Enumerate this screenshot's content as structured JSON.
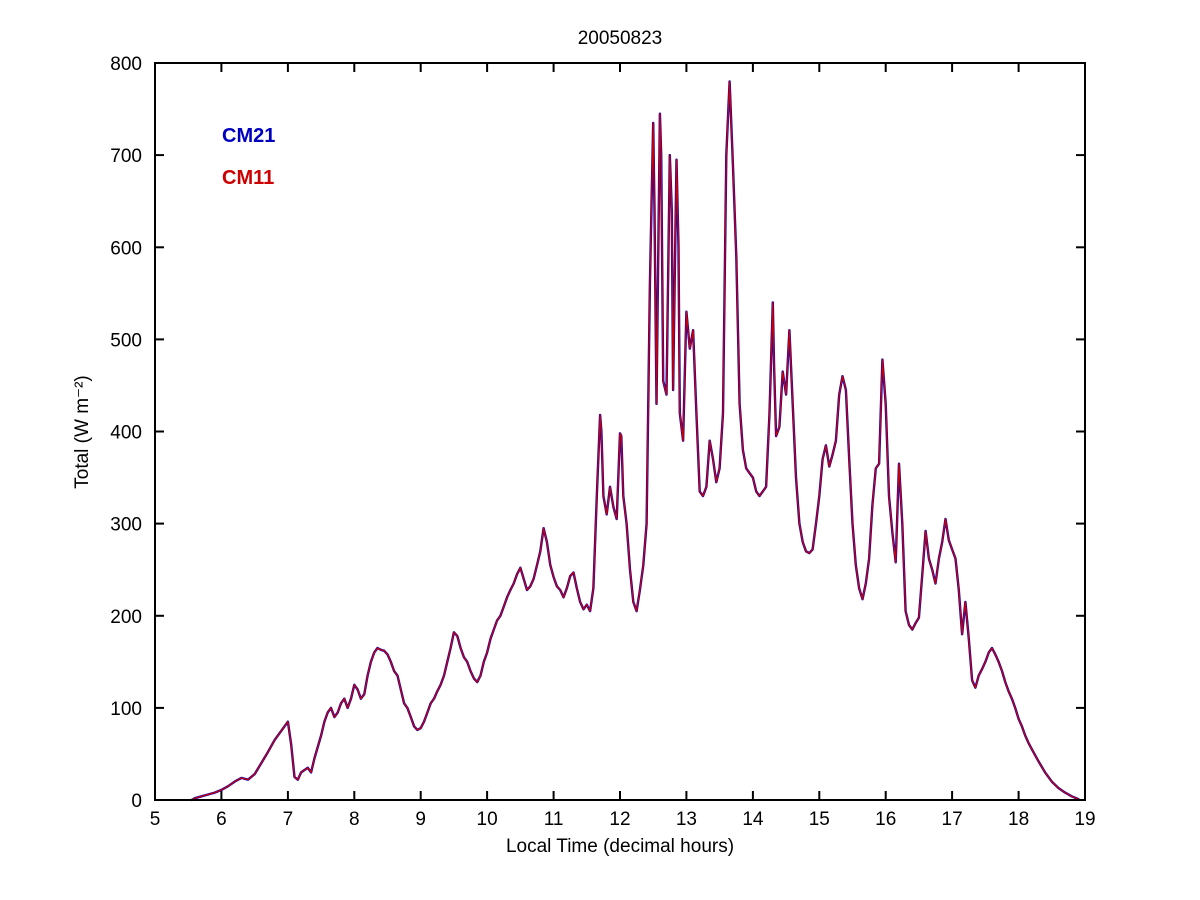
{
  "figure": {
    "background_color": "#ffffff",
    "axis_color": "#000000"
  },
  "chart_data": {
    "type": "line",
    "title": "20050823",
    "xlabel": "Local Time (decimal hours)",
    "ylabel": "Total (W m⁻²)",
    "xlim": [
      5,
      19
    ],
    "ylim": [
      0,
      800
    ],
    "xticks": [
      5,
      6,
      7,
      8,
      9,
      10,
      11,
      12,
      13,
      14,
      15,
      16,
      17,
      18,
      19
    ],
    "yticks": [
      0,
      100,
      200,
      300,
      400,
      500,
      600,
      700,
      800
    ],
    "grid": false,
    "legend_position": "top-left-inside",
    "x": [
      5.55,
      5.6,
      5.7,
      5.8,
      5.9,
      6.0,
      6.1,
      6.2,
      6.3,
      6.4,
      6.5,
      6.6,
      6.7,
      6.8,
      6.9,
      7.0,
      7.05,
      7.1,
      7.15,
      7.2,
      7.3,
      7.35,
      7.4,
      7.5,
      7.55,
      7.6,
      7.65,
      7.7,
      7.75,
      7.8,
      7.85,
      7.9,
      7.95,
      8.0,
      8.05,
      8.1,
      8.15,
      8.2,
      8.25,
      8.3,
      8.35,
      8.4,
      8.45,
      8.5,
      8.55,
      8.6,
      8.65,
      8.7,
      8.75,
      8.8,
      8.85,
      8.9,
      8.95,
      9.0,
      9.05,
      9.1,
      9.15,
      9.2,
      9.25,
      9.3,
      9.35,
      9.4,
      9.45,
      9.5,
      9.55,
      9.6,
      9.65,
      9.7,
      9.75,
      9.8,
      9.85,
      9.9,
      9.95,
      10.0,
      10.05,
      10.1,
      10.15,
      10.2,
      10.25,
      10.3,
      10.35,
      10.4,
      10.45,
      10.5,
      10.55,
      10.6,
      10.65,
      10.7,
      10.75,
      10.8,
      10.85,
      10.9,
      10.95,
      11.0,
      11.05,
      11.1,
      11.15,
      11.2,
      11.25,
      11.3,
      11.35,
      11.4,
      11.45,
      11.5,
      11.55,
      11.6,
      11.65,
      11.7,
      11.72,
      11.75,
      11.8,
      11.85,
      11.9,
      11.95,
      12.0,
      12.02,
      12.05,
      12.1,
      12.15,
      12.2,
      12.25,
      12.3,
      12.35,
      12.4,
      12.45,
      12.5,
      12.52,
      12.55,
      12.6,
      12.62,
      12.65,
      12.7,
      12.75,
      12.78,
      12.8,
      12.85,
      12.88,
      12.9,
      12.95,
      13.0,
      13.05,
      13.1,
      13.15,
      13.2,
      13.25,
      13.3,
      13.35,
      13.4,
      13.45,
      13.5,
      13.55,
      13.6,
      13.65,
      13.7,
      13.75,
      13.8,
      13.85,
      13.9,
      13.95,
      14.0,
      14.05,
      14.1,
      14.15,
      14.2,
      14.25,
      14.3,
      14.32,
      14.35,
      14.4,
      14.45,
      14.5,
      14.55,
      14.6,
      14.65,
      14.7,
      14.75,
      14.8,
      14.85,
      14.9,
      14.95,
      15.0,
      15.05,
      15.1,
      15.15,
      15.2,
      15.25,
      15.3,
      15.35,
      15.4,
      15.45,
      15.5,
      15.55,
      15.6,
      15.65,
      15.7,
      15.75,
      15.8,
      15.85,
      15.9,
      15.95,
      16.0,
      16.05,
      16.1,
      16.15,
      16.2,
      16.25,
      16.3,
      16.35,
      16.4,
      16.45,
      16.5,
      16.55,
      16.6,
      16.65,
      16.7,
      16.75,
      16.8,
      16.85,
      16.9,
      16.95,
      17.0,
      17.05,
      17.1,
      17.15,
      17.2,
      17.25,
      17.3,
      17.35,
      17.4,
      17.45,
      17.5,
      17.55,
      17.6,
      17.65,
      17.7,
      17.75,
      17.8,
      17.85,
      17.9,
      17.95,
      18.0,
      18.05,
      18.1,
      18.15,
      18.2,
      18.3,
      18.4,
      18.5,
      18.6,
      18.7,
      18.8,
      18.9
    ],
    "series": [
      {
        "name": "CM21",
        "color": "#0000C0",
        "values": [
          0,
          2,
          4,
          6,
          8,
          11,
          15,
          20,
          24,
          22,
          28,
          40,
          52,
          65,
          75,
          85,
          60,
          25,
          22,
          30,
          35,
          30,
          45,
          70,
          85,
          95,
          100,
          90,
          95,
          105,
          110,
          100,
          110,
          125,
          120,
          110,
          115,
          135,
          150,
          160,
          165,
          163,
          162,
          158,
          150,
          140,
          135,
          120,
          105,
          100,
          90,
          80,
          76,
          78,
          85,
          95,
          105,
          110,
          118,
          125,
          135,
          150,
          165,
          182,
          178,
          165,
          155,
          150,
          140,
          132,
          128,
          135,
          150,
          160,
          175,
          185,
          195,
          200,
          210,
          220,
          228,
          235,
          245,
          252,
          240,
          228,
          232,
          240,
          255,
          270,
          295,
          280,
          255,
          242,
          232,
          228,
          220,
          230,
          243,
          247,
          230,
          215,
          207,
          212,
          205,
          230,
          330,
          418,
          400,
          330,
          310,
          340,
          318,
          305,
          398,
          395,
          330,
          300,
          250,
          215,
          205,
          228,
          255,
          300,
          560,
          735,
          640,
          430,
          745,
          700,
          455,
          440,
          700,
          640,
          445,
          695,
          600,
          420,
          390,
          530,
          490,
          510,
          420,
          335,
          330,
          340,
          390,
          370,
          345,
          360,
          420,
          700,
          780,
          690,
          590,
          430,
          380,
          360,
          355,
          350,
          335,
          330,
          335,
          340,
          420,
          540,
          470,
          395,
          405,
          465,
          440,
          510,
          430,
          350,
          300,
          280,
          270,
          268,
          272,
          300,
          330,
          370,
          385,
          362,
          375,
          390,
          440,
          460,
          445,
          370,
          300,
          255,
          230,
          218,
          235,
          262,
          320,
          360,
          365,
          478,
          430,
          330,
          290,
          258,
          365,
          300,
          205,
          190,
          185,
          192,
          198,
          245,
          292,
          262,
          250,
          235,
          262,
          280,
          305,
          282,
          272,
          262,
          228,
          180,
          215,
          175,
          130,
          122,
          135,
          142,
          150,
          160,
          165,
          158,
          150,
          140,
          128,
          118,
          110,
          100,
          88,
          80,
          70,
          62,
          55,
          42,
          30,
          20,
          13,
          8,
          4,
          1
        ]
      },
      {
        "name": "CM11",
        "color": "#CC0000",
        "values": [
          0,
          2,
          4,
          6,
          8,
          11,
          15,
          20,
          24,
          22,
          28,
          40,
          52,
          65,
          75,
          85,
          60,
          25,
          22,
          30,
          35,
          30,
          45,
          70,
          85,
          95,
          100,
          90,
          95,
          105,
          110,
          100,
          110,
          125,
          120,
          110,
          115,
          135,
          150,
          160,
          165,
          163,
          162,
          158,
          150,
          140,
          135,
          120,
          105,
          100,
          90,
          80,
          76,
          78,
          85,
          95,
          105,
          110,
          118,
          125,
          135,
          150,
          165,
          182,
          178,
          165,
          155,
          150,
          140,
          132,
          128,
          135,
          150,
          160,
          175,
          185,
          195,
          200,
          210,
          220,
          228,
          235,
          245,
          252,
          240,
          228,
          232,
          240,
          255,
          270,
          295,
          280,
          255,
          242,
          232,
          228,
          220,
          230,
          243,
          247,
          230,
          215,
          207,
          212,
          205,
          230,
          330,
          418,
          400,
          330,
          310,
          340,
          318,
          305,
          398,
          395,
          330,
          300,
          250,
          215,
          205,
          228,
          255,
          300,
          560,
          735,
          640,
          430,
          745,
          700,
          455,
          440,
          700,
          640,
          445,
          695,
          600,
          420,
          390,
          530,
          490,
          510,
          420,
          335,
          330,
          340,
          390,
          370,
          345,
          360,
          420,
          700,
          780,
          690,
          590,
          430,
          380,
          360,
          355,
          350,
          335,
          330,
          335,
          340,
          420,
          540,
          470,
          395,
          405,
          465,
          440,
          510,
          430,
          350,
          300,
          280,
          270,
          268,
          272,
          300,
          330,
          370,
          385,
          362,
          375,
          390,
          440,
          460,
          445,
          370,
          300,
          255,
          230,
          218,
          235,
          262,
          320,
          360,
          365,
          478,
          430,
          330,
          290,
          258,
          365,
          300,
          205,
          190,
          185,
          192,
          198,
          245,
          292,
          262,
          250,
          235,
          262,
          280,
          305,
          282,
          272,
          262,
          228,
          180,
          215,
          175,
          130,
          122,
          135,
          142,
          150,
          160,
          165,
          158,
          150,
          140,
          128,
          118,
          110,
          100,
          88,
          80,
          70,
          62,
          55,
          42,
          30,
          20,
          13,
          8,
          4,
          1
        ]
      }
    ]
  }
}
